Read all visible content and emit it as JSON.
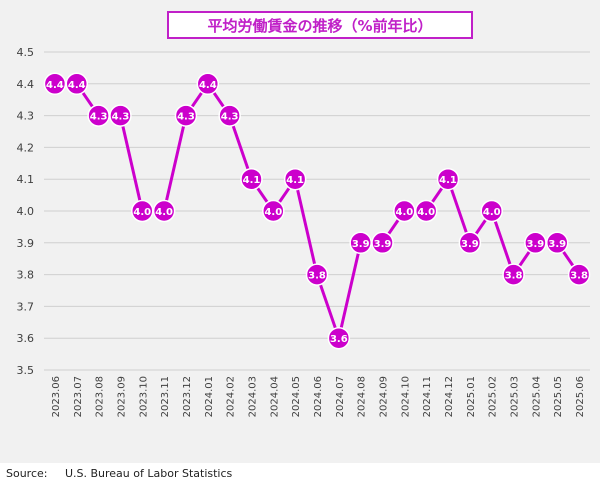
{
  "chart_data": {
    "type": "line",
    "title": "平均労働賃金の推移（%前年比）",
    "categories": [
      "2023.06",
      "2023.07",
      "2023.08",
      "2023.09",
      "2023.10",
      "2023.11",
      "2023.12",
      "2024.01",
      "2024.02",
      "2024.03",
      "2024.04",
      "2024.05",
      "2024.06",
      "2024.07",
      "2024.08",
      "2024.09",
      "2024.10",
      "2024.11",
      "2024.12",
      "2025.01",
      "2025.02",
      "2025.03",
      "2025.04",
      "2025.05",
      "2025.06"
    ],
    "values": [
      4.4,
      4.4,
      4.3,
      4.3,
      4.0,
      4.0,
      4.3,
      4.4,
      4.3,
      4.1,
      4.0,
      4.1,
      3.8,
      3.6,
      3.9,
      3.9,
      4.0,
      4.0,
      4.1,
      3.9,
      4.0,
      3.8,
      3.9,
      3.9,
      3.8
    ],
    "data_labels": [
      "4.4",
      "4.4",
      "4.3",
      "4.3",
      "4.0",
      "4.0",
      "4.3",
      "4.4",
      "4.3",
      "4.1",
      "4.0",
      "4.1",
      "3.8",
      "3.6",
      "3.9",
      "3.9",
      "4.0",
      "4.0",
      "4.1",
      "3.9",
      "4.0",
      "3.8",
      "3.9",
      "3.9",
      "3.8"
    ],
    "ylim": [
      3.5,
      4.5
    ],
    "yticks": [
      "3.5",
      "3.6",
      "3.7",
      "3.8",
      "3.9",
      "4.0",
      "4.1",
      "4.2",
      "4.3",
      "4.4",
      "4.5"
    ],
    "grid": true,
    "xlabel": "",
    "ylabel": "",
    "colors": {
      "line": "#cc00cc",
      "marker_fill": "#cc00cc",
      "marker_stroke": "#ffffff",
      "label": "#ffffff",
      "grid": "#d0d0d0",
      "axis_text": "#404040"
    }
  },
  "source": "Source:     U.S. Bureau of Labor Statistics"
}
